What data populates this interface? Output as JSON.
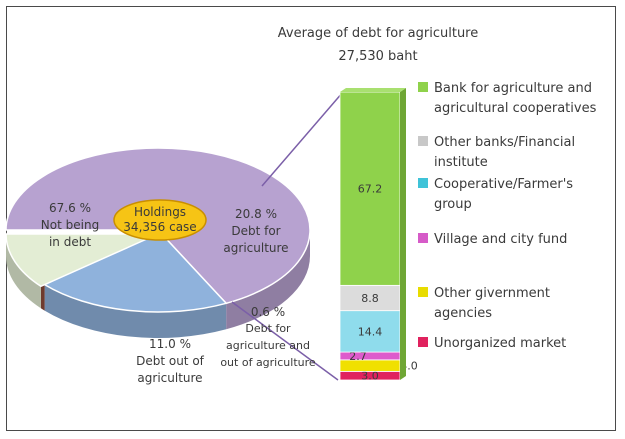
{
  "chart_data": [
    {
      "type": "pie",
      "top_label": "debt",
      "center_label": [
        "Holdings",
        "34,356 case"
      ],
      "slices": [
        {
          "key": "not_debt",
          "value": 67.6,
          "value_text": "67.6 %",
          "label_lines": [
            "Not being",
            "in debt"
          ],
          "color": "#b7a2d0"
        },
        {
          "key": "agri",
          "value": 20.8,
          "value_text": "20.8 %",
          "label_lines": [
            "Debt for",
            "agriculture"
          ],
          "color": "#8fb2dc"
        },
        {
          "key": "both",
          "value": 0.6,
          "value_text": "0.6 %",
          "label_lines": [
            "Debt for",
            "agriculture and",
            "out of agriculture"
          ],
          "color": "#8e4a3a"
        },
        {
          "key": "out",
          "value": 11.0,
          "value_text": "11.0 %",
          "label_lines": [
            "Debt out of",
            "agriculture"
          ],
          "color": "#e3edd4"
        }
      ]
    },
    {
      "type": "bar",
      "stacked": true,
      "title": "Average of debt for agriculture",
      "subtitle": "27,530 baht",
      "series": [
        {
          "name": "Unorganized market",
          "value": 3.0,
          "label": "3.0",
          "color": "#e0225e"
        },
        {
          "name": "Other givernment agencies",
          "value": 4.0,
          "label": "4.0",
          "color": "#f0e000"
        },
        {
          "name": "Village and city fund",
          "value": 2.7,
          "label": "2.7",
          "color": "#dd5bcc"
        },
        {
          "name": "Cooperative/Farmer's group",
          "value": 14.4,
          "label": "14.4",
          "color": "#8fdcec"
        },
        {
          "name": "Other banks/Financial institute",
          "value": 8.8,
          "label": "8.8",
          "color": "#dcdcdc"
        },
        {
          "name": "Bank for agriculture and agricultural cooperatives",
          "value": 67.2,
          "label": "67.2",
          "color": "#8fd24b"
        }
      ],
      "legend_order": [
        {
          "lines": [
            "Bank for agriculture and",
            "agricultural cooperatives"
          ],
          "color": "#8fd24b"
        },
        {
          "lines": [
            "Other banks/Financial",
            "institute"
          ],
          "color": "#c8c8c8"
        },
        {
          "lines": [
            "Cooperative/Farmer's",
            "group"
          ],
          "color": "#3fc3d8"
        },
        {
          "lines": [
            "Village and city fund"
          ],
          "color": "#d65bc8"
        },
        {
          "lines": [
            "Other givernment",
            "agencies"
          ],
          "color": "#e8dc00"
        },
        {
          "lines": [
            "Unorganized market"
          ],
          "color": "#e0225e"
        }
      ]
    }
  ]
}
